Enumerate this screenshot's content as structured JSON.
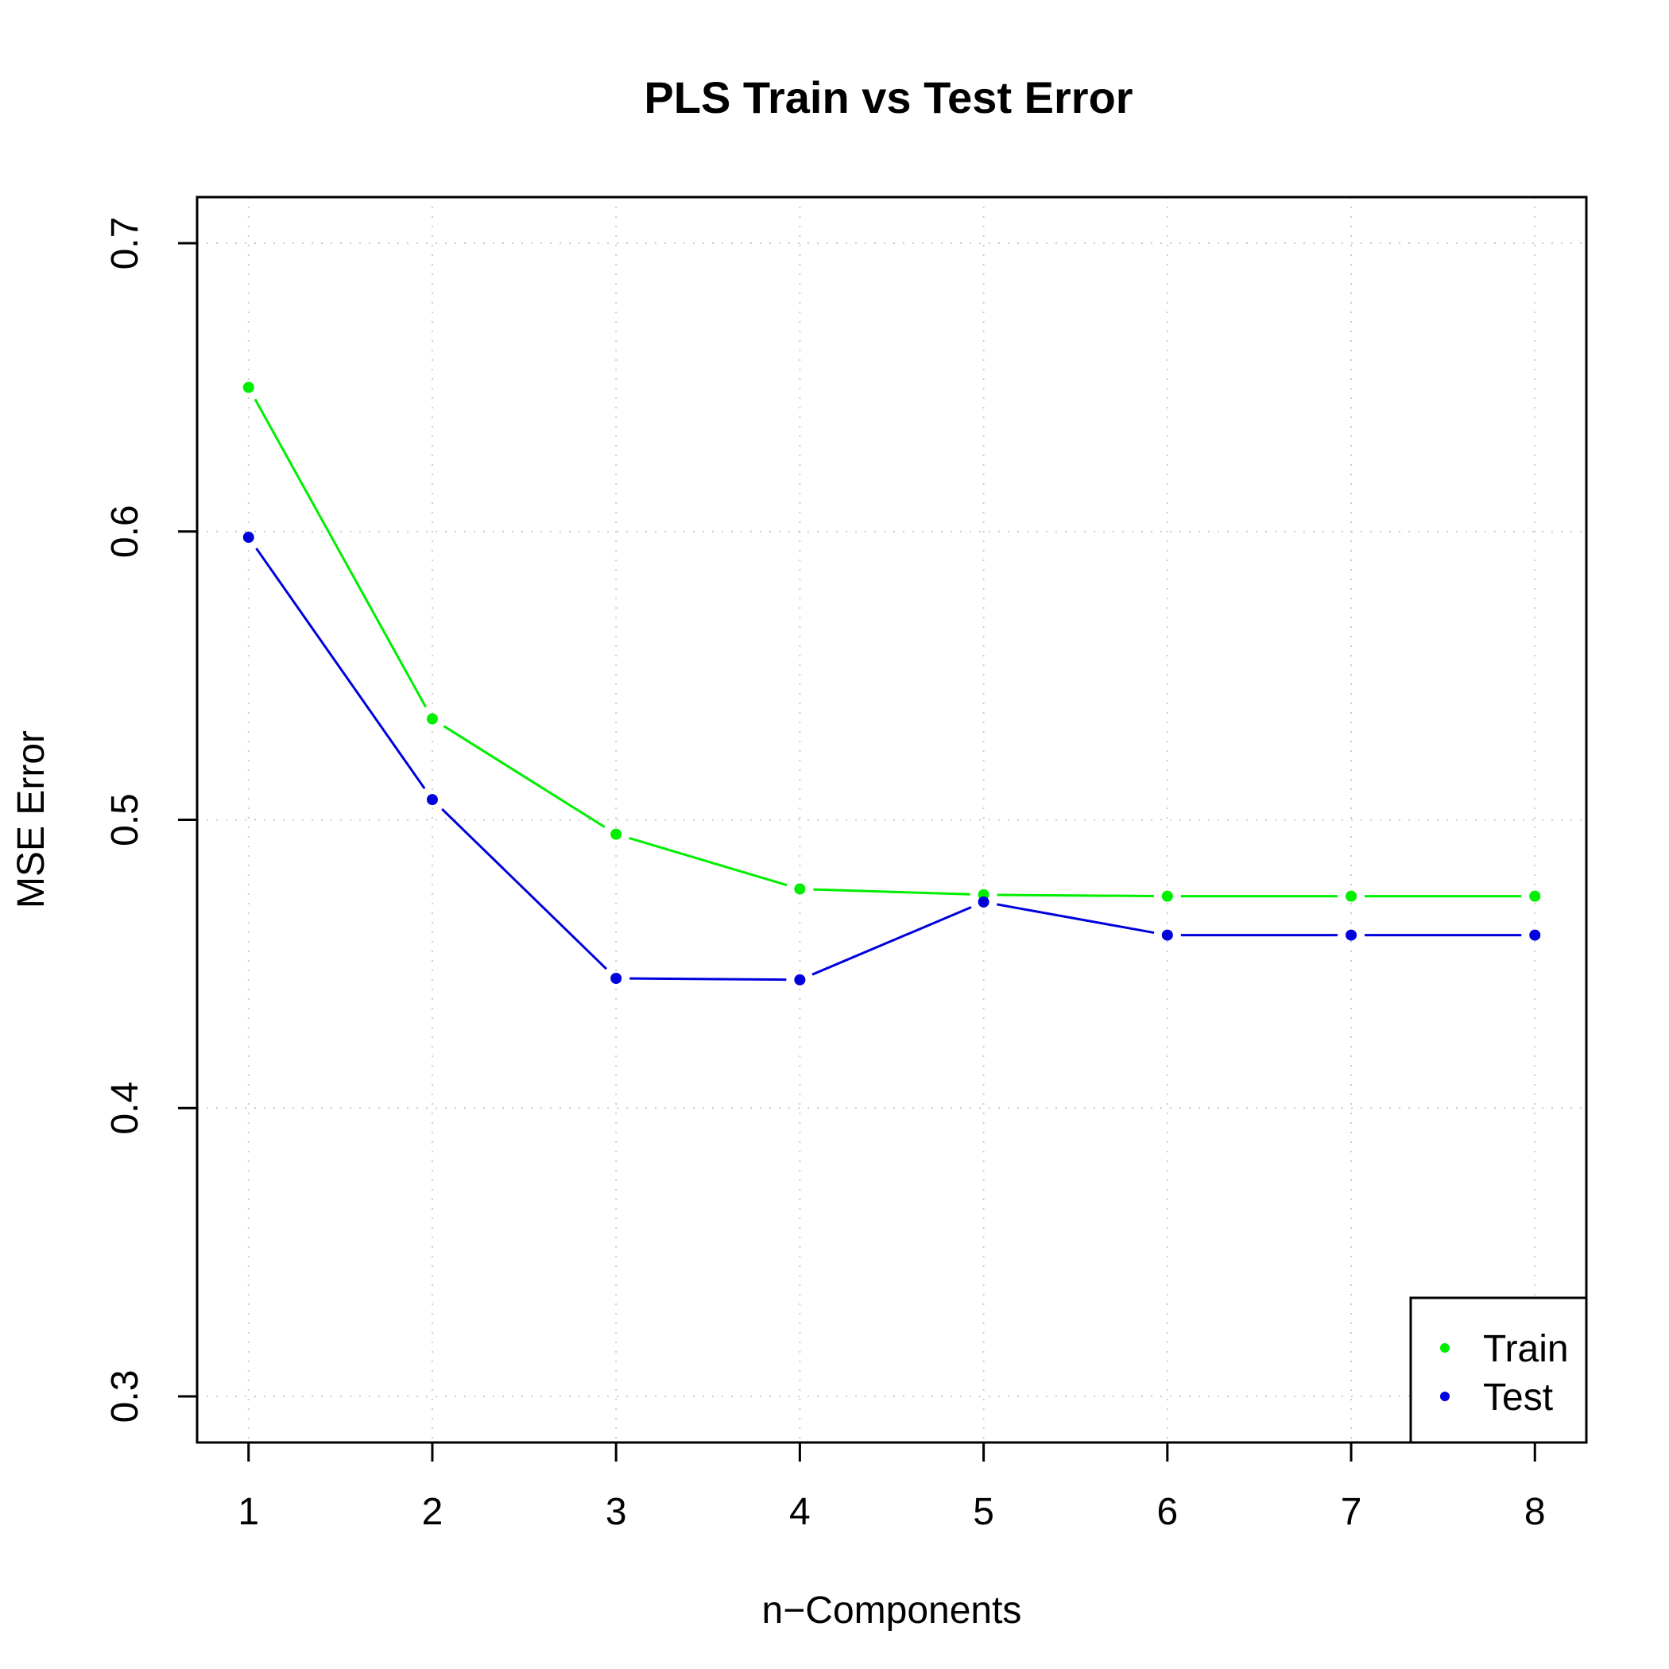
{
  "chart_data": {
    "type": "line",
    "title": "PLS Train vs Test Error",
    "xlabel": "n−Components",
    "ylabel": "MSE Error",
    "x": [
      1,
      2,
      3,
      4,
      5,
      6,
      7,
      8
    ],
    "xticks": [
      "1",
      "2",
      "3",
      "4",
      "5",
      "6",
      "7",
      "8"
    ],
    "yticks": [
      "0.3",
      "0.4",
      "0.5",
      "0.6",
      "0.7"
    ],
    "ytick_values": [
      0.3,
      0.4,
      0.5,
      0.6,
      0.7
    ],
    "xlim": [
      0.72,
      8.28
    ],
    "ylim": [
      0.284,
      0.716
    ],
    "grid": true,
    "legend_position": "bottom-right",
    "series": [
      {
        "name": "Train",
        "color": "#00ee00",
        "values": [
          0.65,
          0.535,
          0.495,
          0.476,
          0.474,
          0.4735,
          0.4735,
          0.4735
        ]
      },
      {
        "name": "Test",
        "color": "#0000dd",
        "values": [
          0.598,
          0.507,
          0.445,
          0.4445,
          0.4715,
          0.46,
          0.46,
          0.46
        ]
      }
    ]
  }
}
